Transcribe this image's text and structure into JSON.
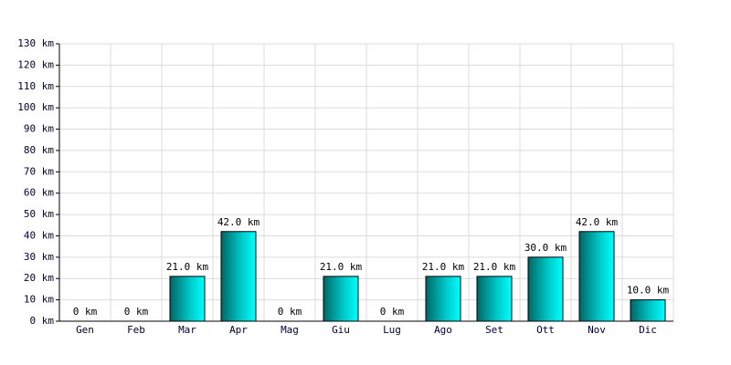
{
  "chart_data": {
    "type": "bar",
    "categories": [
      "Gen",
      "Feb",
      "Mar",
      "Apr",
      "Mag",
      "Giu",
      "Lug",
      "Ago",
      "Set",
      "Ott",
      "Nov",
      "Dic"
    ],
    "values": [
      0,
      0,
      21,
      42,
      0,
      21,
      0,
      21,
      21,
      30,
      42,
      10
    ],
    "value_labels": [
      "0 km",
      "0 km",
      "21.0 km",
      "42.0 km",
      "0 km",
      "21.0 km",
      "0 km",
      "21.0 km",
      "21.0 km",
      "30.0 km",
      "42.0 km",
      "10.0 km"
    ],
    "color": "#00cccc",
    "ylim": [
      0,
      130
    ],
    "yticks": [
      {
        "value": 0,
        "label": "0 km"
      },
      {
        "value": 10,
        "label": "10 km"
      },
      {
        "value": 20,
        "label": "20 km"
      },
      {
        "value": 30,
        "label": "30 km"
      },
      {
        "value": 40,
        "label": "40 km"
      },
      {
        "value": 50,
        "label": "50 km"
      },
      {
        "value": 60,
        "label": "60 km"
      },
      {
        "value": 70,
        "label": "70 km"
      },
      {
        "value": 80,
        "label": "80 km"
      },
      {
        "value": 90,
        "label": "90 km"
      },
      {
        "value": 100,
        "label": "100 km"
      },
      {
        "value": 110,
        "label": "110 km"
      },
      {
        "value": 120,
        "label": "120 km"
      },
      {
        "value": 130,
        "label": "130 km"
      }
    ],
    "grid": true
  }
}
